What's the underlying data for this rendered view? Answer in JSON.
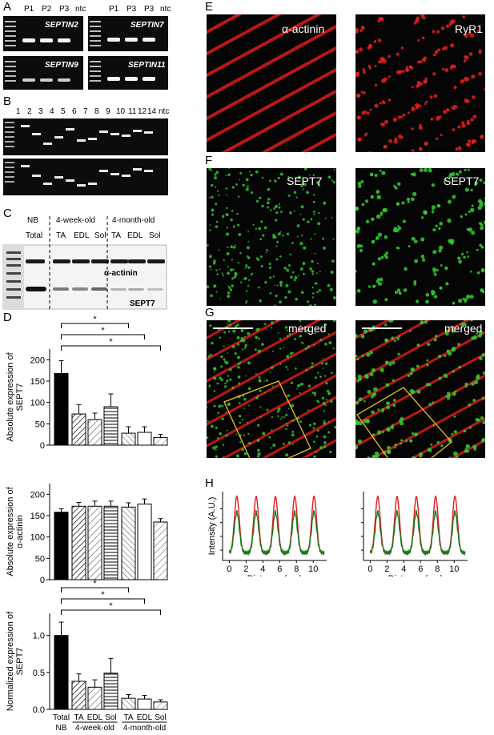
{
  "panels": {
    "A": "A",
    "B": "B",
    "C": "C",
    "D": "D",
    "E": "E",
    "F": "F",
    "G": "G",
    "H": "H"
  },
  "panel_a": {
    "top_left_lanes": [
      "P1",
      "P2",
      "P3",
      "ntc"
    ],
    "top_right_lanes": [
      "P1",
      "P3",
      "P3",
      "ntc"
    ],
    "gel_labels": [
      "SEPTIN2",
      "SEPTIN7",
      "SEPTIN9",
      "SEPTIN11"
    ]
  },
  "panel_b": {
    "lanes": [
      "1",
      "2",
      "3",
      "4",
      "5",
      "6",
      "7",
      "8",
      "9",
      "10",
      "11",
      "12",
      "14",
      "ntc"
    ]
  },
  "panel_c": {
    "groups": [
      "NB",
      "4-week-old",
      "4-month-old"
    ],
    "lanes": [
      "Total",
      "TA",
      "EDL",
      "Sol",
      "TA",
      "EDL",
      "Sol"
    ],
    "band_labels": [
      "α-actinin",
      "SEPT7"
    ]
  },
  "panel_e": {
    "left": "α-actinin",
    "right": "RyR1"
  },
  "panel_f": {
    "left": "SEPT7",
    "right": "SEPT7"
  },
  "panel_g": {
    "left": "merged",
    "right": "merged"
  },
  "panel_h": {
    "ylabel": "Intensity (A.U.)",
    "xlabel": "Distance (µm)",
    "xticks": [
      "0",
      "2",
      "4",
      "6",
      "8",
      "10"
    ]
  },
  "chart_data": [
    {
      "type": "bar",
      "categories": [
        "Total",
        "TA",
        "EDL",
        "Sol",
        "TA",
        "EDL",
        "Sol"
      ],
      "values": [
        168,
        73,
        60,
        90,
        28,
        30,
        18
      ],
      "errors": [
        30,
        22,
        15,
        30,
        15,
        13,
        7
      ],
      "ylabel": "Absolute expression of SEPT7",
      "ylim": [
        0,
        225
      ],
      "yticks": [
        0,
        50,
        100,
        150,
        200
      ],
      "significance": [
        "*",
        "*",
        "*"
      ]
    },
    {
      "type": "bar",
      "categories": [
        "Total",
        "TA",
        "EDL",
        "Sol",
        "TA",
        "EDL",
        "Sol"
      ],
      "values": [
        158,
        172,
        172,
        172,
        170,
        177,
        135
      ],
      "errors": [
        8,
        9,
        12,
        12,
        10,
        12,
        8
      ],
      "ylabel": "Absolute expression of α-actinin",
      "ylim": [
        0,
        225
      ],
      "yticks": [
        0,
        50,
        100,
        150,
        200
      ]
    },
    {
      "type": "bar",
      "categories": [
        "Total",
        "TA",
        "EDL",
        "Sol",
        "TA",
        "EDL",
        "Sol"
      ],
      "values": [
        1.0,
        0.38,
        0.3,
        0.49,
        0.15,
        0.14,
        0.1
      ],
      "errors": [
        0.18,
        0.1,
        0.1,
        0.2,
        0.05,
        0.05,
        0.03
      ],
      "ylabel": "Normalized expression of SEPT7",
      "ylim": [
        0,
        1.3
      ],
      "yticks": [
        "0.0",
        "0.5",
        "1.0"
      ],
      "significance": [
        "*",
        "*",
        "*"
      ],
      "group_labels": [
        "NB",
        "4-week-old",
        "4-month-old"
      ]
    },
    {
      "type": "line",
      "x_period_um": 2.3,
      "series": [
        {
          "color": "#e41a1c",
          "peaks_um": [
            0.9,
            3.2,
            5.5,
            7.8,
            10.1
          ]
        },
        {
          "color": "#1b7a1b",
          "peaks_um": [
            0.9,
            3.2,
            5.5,
            7.8,
            10.1
          ]
        }
      ],
      "xlim": [
        -0.8,
        11.6
      ]
    },
    {
      "type": "line",
      "x_period_um": 2.3,
      "series": [
        {
          "color": "#e41a1c",
          "peaks_um": [
            0.9,
            3.2,
            5.5,
            7.8,
            10.1
          ]
        },
        {
          "color": "#1b7a1b",
          "peaks_um": [
            0.9,
            3.2,
            5.5,
            7.8,
            10.1
          ]
        }
      ],
      "xlim": [
        -0.8,
        11.6
      ]
    }
  ],
  "colors": {
    "red": "#e41a1c",
    "green": "#1b7a1b",
    "box": "#e7c02a"
  }
}
